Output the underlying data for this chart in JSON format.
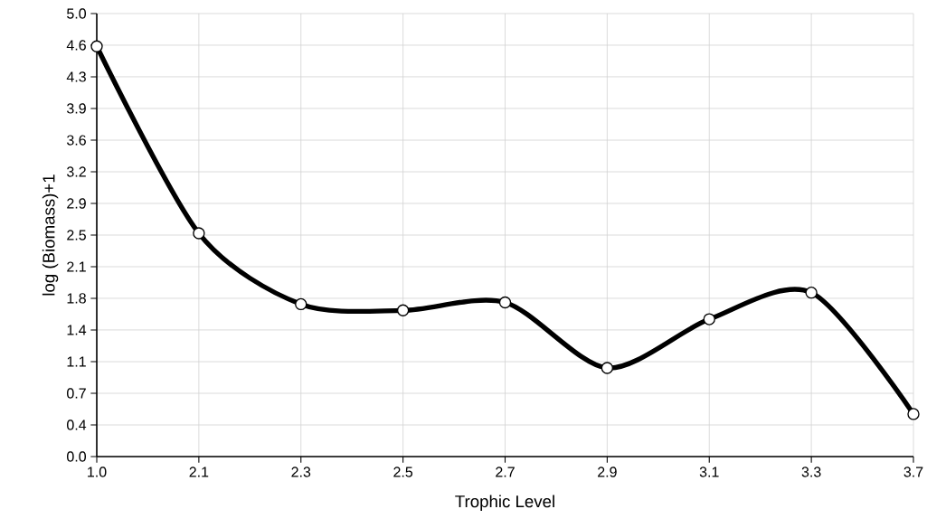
{
  "chart_data": {
    "type": "line",
    "xlabel": "Trophic Level",
    "ylabel": "log (Biomass)+1",
    "categories": [
      "1.0",
      "2.1",
      "2.3",
      "2.5",
      "2.7",
      "2.9",
      "3.1",
      "3.3",
      "3.7"
    ],
    "values": [
      4.63,
      2.52,
      1.72,
      1.65,
      1.74,
      1.0,
      1.55,
      1.85,
      0.48
    ],
    "color": "#000000",
    "ylim": [
      0,
      5
    ],
    "yticks": [
      {
        "value": 0,
        "label": "0.0"
      },
      {
        "value": 0.357,
        "label": "0.4"
      },
      {
        "value": 0.714,
        "label": "0.7"
      },
      {
        "value": 1.071,
        "label": "1.1"
      },
      {
        "value": 1.429,
        "label": "1.4"
      },
      {
        "value": 1.786,
        "label": "1.8"
      },
      {
        "value": 2.143,
        "label": "2.1"
      },
      {
        "value": 2.5,
        "label": "2.5"
      },
      {
        "value": 2.857,
        "label": "2.9"
      },
      {
        "value": 3.214,
        "label": "3.2"
      },
      {
        "value": 3.571,
        "label": "3.6"
      },
      {
        "value": 3.929,
        "label": "3.9"
      },
      {
        "value": 4.286,
        "label": "4.3"
      },
      {
        "value": 4.643,
        "label": "4.6"
      },
      {
        "value": 5,
        "label": "5.0"
      }
    ],
    "grid": true,
    "marker": "circle",
    "line_style": "solid"
  }
}
